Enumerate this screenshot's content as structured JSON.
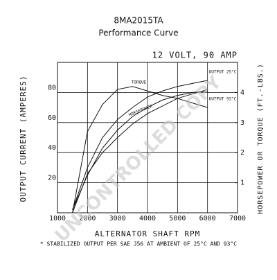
{
  "chart_data": {
    "type": "line",
    "title": "8MA2015TA",
    "subtitle": "Performance Curve",
    "annotation": "12 VOLT, 90 AMP",
    "watermark": "UNCONTROLLED COPY",
    "footnote": "* STABILIZED OUTPUT PER SAE J56 AT AMBIENT OF 25°C AND 93°C",
    "x_label": "ALTERNATOR SHAFT RPM",
    "y_label": "OUTPUT CURRENT (AMPERES)",
    "y2_label": "HORSEPOWER OR TORQUE (FT.-LBS.)",
    "x": [
      1500,
      2000,
      2500,
      3000,
      3500,
      4000,
      4500,
      5000,
      5500,
      6000
    ],
    "series": [
      {
        "name": "OUTPUT 25°C",
        "color": "#111111",
        "values": [
          2,
          30,
          50,
          62,
          70,
          77,
          81,
          84,
          86,
          88
        ]
      },
      {
        "name": "OUTPUT 93°C",
        "color": "#111111",
        "values": [
          2,
          25,
          43,
          55,
          64,
          70,
          75,
          78,
          80,
          81
        ]
      },
      {
        "name": "TORQUE",
        "color": "#111111",
        "axis": "y2",
        "values": [
          0,
          2.7,
          3.6,
          4.1,
          4.2,
          4.05,
          3.9,
          3.8,
          3.65,
          3.5
        ]
      },
      {
        "name": "HORSEPOWER",
        "color": "#111111",
        "axis": "y2",
        "values": [
          0,
          1.3,
          2,
          2.5,
          2.95,
          3.3,
          3.55,
          3.8,
          3.95,
          4.1
        ]
      }
    ],
    "xlim": [
      1000,
      7000
    ],
    "xticks": [
      1000,
      2000,
      3000,
      4000,
      5000,
      6000,
      7000
    ],
    "ylim": [
      0,
      100
    ],
    "yticks": [
      20,
      40,
      60,
      80
    ],
    "y2lim": [
      0,
      5
    ],
    "y2ticks": [
      1,
      2,
      3,
      4
    ],
    "grid": true
  }
}
